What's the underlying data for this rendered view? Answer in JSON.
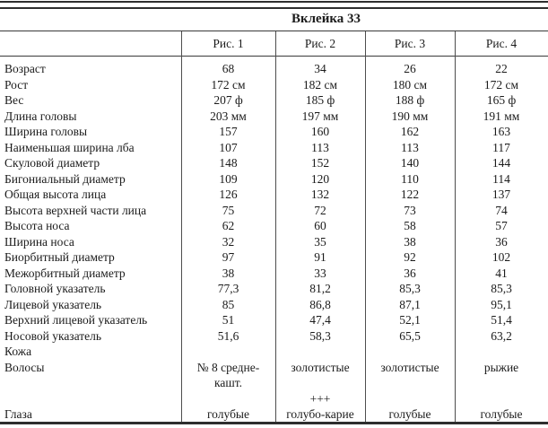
{
  "title": "Вклейка 33",
  "table": {
    "column_headers": [
      "Рис. 1",
      "Рис. 2",
      "Рис. 3",
      "Рис. 4"
    ],
    "rows": [
      {
        "label": "Возраст",
        "values": [
          "68",
          "34",
          "26",
          "22"
        ]
      },
      {
        "label": "Рост",
        "values": [
          "172 см",
          "182 см",
          "180 см",
          "172 см"
        ]
      },
      {
        "label": "Вес",
        "values": [
          "207 ф",
          "185 ф",
          "188 ф",
          "165 ф"
        ]
      },
      {
        "label": "Длина головы",
        "values": [
          "203 мм",
          "197 мм",
          "190 мм",
          "191 мм"
        ]
      },
      {
        "label": "Ширина головы",
        "values": [
          "157",
          "160",
          "162",
          "163"
        ]
      },
      {
        "label": "Наименьшая ширина лба",
        "values": [
          "107",
          "113",
          "113",
          "117"
        ]
      },
      {
        "label": "Скуловой диаметр",
        "values": [
          "148",
          "152",
          "140",
          "144"
        ]
      },
      {
        "label": "Бигониальный диаметр",
        "values": [
          "109",
          "120",
          "110",
          "114"
        ]
      },
      {
        "label": "Общая высота лица",
        "values": [
          "126",
          "132",
          "122",
          "137"
        ]
      },
      {
        "label": "Высота верхней части лица",
        "values": [
          "75",
          "72",
          "73",
          "74"
        ]
      },
      {
        "label": "Высота носа",
        "values": [
          "62",
          "60",
          "58",
          "57"
        ]
      },
      {
        "label": "Ширина носа",
        "values": [
          "32",
          "35",
          "38",
          "36"
        ]
      },
      {
        "label": "Биорбитный диаметр",
        "values": [
          "97",
          "91",
          "92",
          "102"
        ]
      },
      {
        "label": "Межорбитный диаметр",
        "values": [
          "38",
          "33",
          "36",
          "41"
        ]
      },
      {
        "label": "Головной указатель",
        "values": [
          "77,3",
          "81,2",
          "85,3",
          "85,3"
        ]
      },
      {
        "label": "Лицевой указатель",
        "values": [
          "85",
          "86,8",
          "87,1",
          "95,1"
        ]
      },
      {
        "label": "Верхний лицевой указатель",
        "values": [
          "51",
          "47,4",
          "52,1",
          "51,4"
        ]
      },
      {
        "label": "Носовой указатель",
        "values": [
          "51,6",
          "58,3",
          "65,5",
          "63,2"
        ]
      },
      {
        "label": "Кожа",
        "values": [
          "",
          "",
          "",
          ""
        ]
      },
      {
        "label": "Волосы",
        "values": [
          "№ 8 средне-",
          "золотистые",
          "золотистые",
          "рыжие"
        ]
      },
      {
        "label": "",
        "values": [
          "кашт.",
          "",
          "",
          ""
        ]
      },
      {
        "label": "",
        "values": [
          "",
          "+++",
          "",
          ""
        ]
      },
      {
        "label": "Глаза",
        "values": [
          "голубые",
          "голубо-карие",
          "голубые",
          "голубые"
        ]
      }
    ]
  },
  "colors": {
    "background": "#ffffff",
    "text": "#1b1b1b",
    "border_dark": "#2e2e2e",
    "border_gray": "#4d4d4d"
  }
}
